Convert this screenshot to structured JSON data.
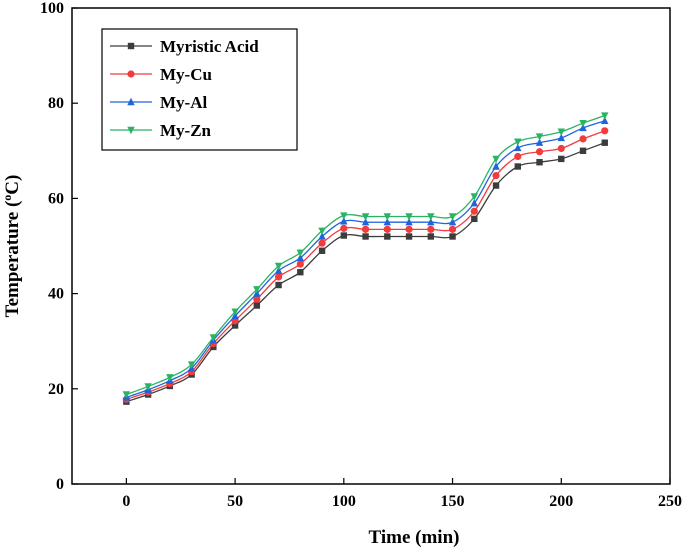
{
  "chart_data": {
    "type": "line",
    "title": "",
    "xlabel": "Time (min)",
    "ylabel_main": "Temperature (",
    "ylabel_sup": "o",
    "ylabel_tail": "C)",
    "xlim": [
      -25,
      250
    ],
    "ylim": [
      0,
      100
    ],
    "xticks": [
      0,
      50,
      100,
      150,
      200,
      250
    ],
    "yticks": [
      0,
      20,
      40,
      60,
      80,
      100
    ],
    "grid": false,
    "legend_position": "top-left",
    "x": [
      0,
      10,
      20,
      30,
      40,
      50,
      60,
      70,
      80,
      90,
      100,
      110,
      120,
      130,
      140,
      150,
      160,
      170,
      180,
      190,
      200,
      210,
      220
    ],
    "series": [
      {
        "name": "Myristic Acid",
        "color": "#3c3c3c",
        "marker": "square",
        "values": [
          17.3,
          18.8,
          20.6,
          23.0,
          28.8,
          33.3,
          37.5,
          41.8,
          44.5,
          49.0,
          52.2,
          52.0,
          52.0,
          52.0,
          52.0,
          52.0,
          55.7,
          62.7,
          66.7,
          67.6,
          68.3,
          70.0,
          71.7
        ]
      },
      {
        "name": "My-Cu",
        "color": "#f03c3c",
        "marker": "circle",
        "values": [
          17.8,
          19.3,
          21.1,
          23.6,
          29.5,
          34.3,
          38.8,
          43.5,
          46.2,
          50.6,
          53.7,
          53.5,
          53.5,
          53.5,
          53.5,
          53.5,
          57.3,
          64.8,
          68.8,
          69.8,
          70.5,
          72.5,
          74.2
        ]
      },
      {
        "name": "My-Al",
        "color": "#1e64dc",
        "marker": "triangle-up",
        "values": [
          18.2,
          19.8,
          21.7,
          24.3,
          30.2,
          35.3,
          40.0,
          44.8,
          47.5,
          52.0,
          55.2,
          55.0,
          55.0,
          55.0,
          55.0,
          55.0,
          59.0,
          66.7,
          70.6,
          71.7,
          72.7,
          74.8,
          76.3
        ]
      },
      {
        "name": "My-Zn",
        "color": "#28b464",
        "marker": "triangle-down",
        "values": [
          18.8,
          20.5,
          22.4,
          25.1,
          30.8,
          36.2,
          40.9,
          45.8,
          48.6,
          53.2,
          56.4,
          56.2,
          56.2,
          56.2,
          56.2,
          56.2,
          60.4,
          68.3,
          71.9,
          73.0,
          74.0,
          75.8,
          77.4
        ]
      }
    ]
  }
}
